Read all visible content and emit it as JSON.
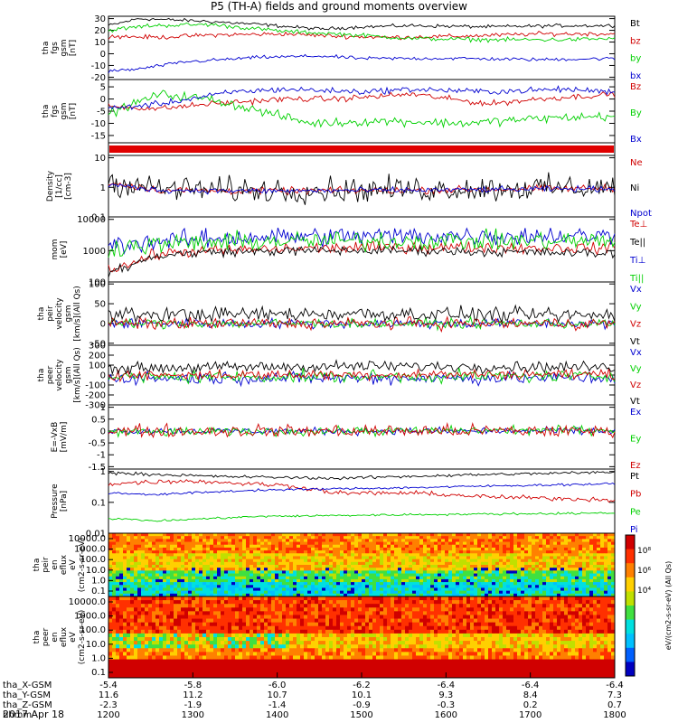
{
  "title": "P5 (TH-A) fields and ground moments overview",
  "footer_date": "2017 Apr 18",
  "spectro_cbar_labels": [
    "10⁸",
    "10⁶",
    "10⁴"
  ],
  "spectro_cbar_unit": "eV/(cm2-s-sr-eV) (All Qs)",
  "chart_data": [
    {
      "type": "line",
      "ylabel": [
        "tha",
        "fgs",
        "gsm",
        "[nT]"
      ],
      "yticks": [
        30,
        20,
        10,
        0,
        -10,
        -20
      ],
      "ylim": [
        -22,
        32
      ],
      "log": false,
      "series": [
        {
          "name": "Bt",
          "color": "#000000",
          "shape": [
            [
              0,
              24
            ],
            [
              0.06,
              30
            ],
            [
              0.18,
              28
            ],
            [
              0.3,
              25
            ],
            [
              0.42,
              21
            ],
            [
              0.5,
              23
            ],
            [
              0.6,
              24
            ],
            [
              0.75,
              23
            ],
            [
              0.9,
              24
            ],
            [
              1,
              24
            ]
          ],
          "noise": 1.2
        },
        {
          "name": "bz",
          "color": "#d00000",
          "shape": [
            [
              0,
              15
            ],
            [
              0.1,
              14
            ],
            [
              0.2,
              16
            ],
            [
              0.35,
              17
            ],
            [
              0.45,
              15
            ],
            [
              0.55,
              14
            ],
            [
              0.7,
              15
            ],
            [
              0.85,
              17
            ],
            [
              1,
              17
            ]
          ],
          "noise": 1.5
        },
        {
          "name": "by",
          "color": "#00d000",
          "shape": [
            [
              0,
              20
            ],
            [
              0.08,
              24
            ],
            [
              0.2,
              25
            ],
            [
              0.35,
              19
            ],
            [
              0.45,
              17
            ],
            [
              0.6,
              13
            ],
            [
              0.75,
              12
            ],
            [
              0.9,
              12
            ],
            [
              1,
              13
            ]
          ],
          "noise": 1.5
        },
        {
          "name": "bx",
          "color": "#0000d0",
          "shape": [
            [
              0,
              -15
            ],
            [
              0.06,
              -13
            ],
            [
              0.15,
              -7
            ],
            [
              0.3,
              -3
            ],
            [
              0.42,
              -2
            ],
            [
              0.5,
              -4
            ],
            [
              0.7,
              -4
            ],
            [
              0.85,
              -5
            ],
            [
              1,
              -4
            ]
          ],
          "noise": 1.2
        }
      ]
    },
    {
      "type": "line",
      "ylabel": [
        "tha",
        "fgs",
        "gsm",
        "[nT]"
      ],
      "yticks": [
        5,
        0,
        -5,
        -10,
        -15
      ],
      "ylim": [
        -18,
        8
      ],
      "log": false,
      "series": [
        {
          "name": "Bz",
          "color": "#d00000",
          "shape": [
            [
              0,
              -3
            ],
            [
              0.1,
              -4
            ],
            [
              0.2,
              -2
            ],
            [
              0.35,
              0
            ],
            [
              0.45,
              0
            ],
            [
              0.6,
              2
            ],
            [
              0.75,
              -2
            ],
            [
              0.85,
              0
            ],
            [
              1,
              2
            ]
          ],
          "noise": 1.0
        },
        {
          "name": "By",
          "color": "#00d000",
          "shape": [
            [
              0,
              -6
            ],
            [
              0.1,
              2
            ],
            [
              0.2,
              0
            ],
            [
              0.3,
              -5
            ],
            [
              0.4,
              -10
            ],
            [
              0.55,
              -9
            ],
            [
              0.7,
              -10
            ],
            [
              0.85,
              -8
            ],
            [
              1,
              -7
            ]
          ],
          "noise": 1.5
        },
        {
          "name": "Bx",
          "color": "#0000d0",
          "shape": [
            [
              0,
              -4
            ],
            [
              0.1,
              -2
            ],
            [
              0.25,
              3
            ],
            [
              0.35,
              4
            ],
            [
              0.5,
              3
            ],
            [
              0.6,
              4
            ],
            [
              0.75,
              3
            ],
            [
              0.9,
              4
            ],
            [
              1,
              3
            ]
          ],
          "noise": 1.0
        }
      ]
    },
    {
      "type": "line",
      "ylabel": [
        "Density",
        "[1/cc]",
        "[cm-3]"
      ],
      "yticks": [
        10.0,
        1.0,
        0.1
      ],
      "ylim": [
        0.1,
        12
      ],
      "log": true,
      "series": [
        {
          "name": "Ne",
          "color": "#d00000",
          "shape": [
            [
              0,
              1.4
            ],
            [
              0.1,
              0.8
            ],
            [
              0.3,
              0.75
            ],
            [
              0.6,
              0.8
            ],
            [
              1,
              0.95
            ]
          ],
          "noise": 0.1
        },
        {
          "name": "Ni",
          "color": "#000000",
          "shape": [
            [
              0,
              1.5
            ],
            [
              0.1,
              0.9
            ],
            [
              0.3,
              0.8
            ],
            [
              0.6,
              0.85
            ],
            [
              1,
              1.0
            ]
          ],
          "noise": 0.35
        },
        {
          "name": "Npot",
          "color": "#0000d0",
          "shape": [
            [
              0,
              1.2
            ],
            [
              0.1,
              0.8
            ],
            [
              0.3,
              0.75
            ],
            [
              0.6,
              0.8
            ],
            [
              1,
              0.9
            ]
          ],
          "noise": 0.08
        }
      ]
    },
    {
      "type": "line",
      "ylabel": [
        "mom",
        "[eV]"
      ],
      "yticks": [
        10000,
        1000,
        100
      ],
      "ylim": [
        100,
        12000
      ],
      "log": true,
      "series": [
        {
          "name": "Te⊥",
          "color": "#d00000",
          "shape": [
            [
              0,
              250
            ],
            [
              0.05,
              400
            ],
            [
              0.1,
              800
            ],
            [
              0.2,
              1000
            ],
            [
              0.4,
              1200
            ],
            [
              0.6,
              1300
            ],
            [
              1,
              1200
            ]
          ],
          "noise": 0.15
        },
        {
          "name": "Te||",
          "color": "#000000",
          "shape": [
            [
              0,
              200
            ],
            [
              0.05,
              350
            ],
            [
              0.1,
              700
            ],
            [
              0.2,
              900
            ],
            [
              0.4,
              1000
            ],
            [
              0.6,
              1000
            ],
            [
              0.8,
              900
            ],
            [
              1,
              800
            ]
          ],
          "noise": 0.12
        },
        {
          "name": "Ti⊥",
          "color": "#0000d0",
          "shape": [
            [
              0,
              1500
            ],
            [
              0.1,
              2000
            ],
            [
              0.3,
              2800
            ],
            [
              0.6,
              3000
            ],
            [
              1,
              3000
            ]
          ],
          "noise": 0.25
        },
        {
          "name": "Ti||",
          "color": "#00d000",
          "shape": [
            [
              0,
              1200
            ],
            [
              0.1,
              1600
            ],
            [
              0.3,
              2000
            ],
            [
              0.6,
              2100
            ],
            [
              1,
              2000
            ]
          ],
          "noise": 0.25
        }
      ]
    },
    {
      "type": "line",
      "ylabel": [
        "tha",
        "peir",
        "velocity",
        "gsm",
        "[km/s](All Qs)"
      ],
      "yticks": [
        100,
        50,
        0,
        -50
      ],
      "ylim": [
        -55,
        105
      ],
      "log": false,
      "series": [
        {
          "name": "Vx",
          "color": "#0000d0",
          "shape": [
            [
              0,
              0
            ],
            [
              1,
              0
            ]
          ],
          "noise": 10
        },
        {
          "name": "Vy",
          "color": "#00d000",
          "shape": [
            [
              0,
              0
            ],
            [
              1,
              0
            ]
          ],
          "noise": 10
        },
        {
          "name": "Vz",
          "color": "#d00000",
          "shape": [
            [
              0,
              0
            ],
            [
              1,
              0
            ]
          ],
          "noise": 12
        },
        {
          "name": "Vt",
          "color": "#000000",
          "shape": [
            [
              0,
              22
            ],
            [
              0.5,
              25
            ],
            [
              1,
              20
            ]
          ],
          "noise": 15
        }
      ]
    },
    {
      "type": "line",
      "ylabel": [
        "tha",
        "peer",
        "velocity",
        "gsm",
        "[km/s](All Qs)"
      ],
      "yticks": [
        300,
        200,
        100,
        0,
        -100,
        -200,
        -300
      ],
      "ylim": [
        -300,
        300
      ],
      "log": false,
      "series": [
        {
          "name": "Vx",
          "color": "#0000d0",
          "shape": [
            [
              0,
              -30
            ],
            [
              1,
              -30
            ]
          ],
          "noise": 50
        },
        {
          "name": "Vy",
          "color": "#00d000",
          "shape": [
            [
              0,
              -20
            ],
            [
              1,
              -10
            ]
          ],
          "noise": 50
        },
        {
          "name": "Vz",
          "color": "#d00000",
          "shape": [
            [
              0,
              0
            ],
            [
              1,
              10
            ]
          ],
          "noise": 40
        },
        {
          "name": "Vt",
          "color": "#000000",
          "shape": [
            [
              0,
              70
            ],
            [
              0.5,
              90
            ],
            [
              1,
              80
            ]
          ],
          "noise": 45
        }
      ]
    },
    {
      "type": "line",
      "ylabel": [
        "E=-VxB",
        "[mV/m]"
      ],
      "yticks": [
        1.0,
        0.5,
        0.0,
        -0.5,
        -1.0,
        -1.5
      ],
      "ylim": [
        -1.6,
        1.1
      ],
      "log": false,
      "series": [
        {
          "name": "Ex",
          "color": "#0000d0",
          "shape": [
            [
              0,
              0
            ],
            [
              1,
              0
            ]
          ],
          "noise": 0.12
        },
        {
          "name": "Ey",
          "color": "#00d000",
          "shape": [
            [
              0,
              -0.05
            ],
            [
              1,
              0.05
            ]
          ],
          "noise": 0.15
        },
        {
          "name": "Ez",
          "color": "#d00000",
          "shape": [
            [
              0,
              0
            ],
            [
              1,
              0
            ]
          ],
          "noise": 0.22
        }
      ]
    },
    {
      "type": "line",
      "ylabel": [
        "Pressure",
        "[nPa]"
      ],
      "yticks": [
        1.0,
        0.1,
        0.01
      ],
      "ylim": [
        0.01,
        1.2
      ],
      "log": true,
      "series": [
        {
          "name": "Pt",
          "color": "#000000",
          "shape": [
            [
              0,
              0.9
            ],
            [
              0.2,
              0.7
            ],
            [
              0.45,
              0.6
            ],
            [
              0.6,
              0.7
            ],
            [
              0.75,
              0.8
            ],
            [
              1,
              0.95
            ]
          ],
          "noise": 0.04
        },
        {
          "name": "Pb",
          "color": "#d00000",
          "shape": [
            [
              0,
              0.4
            ],
            [
              0.15,
              0.5
            ],
            [
              0.35,
              0.35
            ],
            [
              0.45,
              0.2
            ],
            [
              0.6,
              0.2
            ],
            [
              0.75,
              0.15
            ],
            [
              1,
              0.12
            ]
          ],
          "noise": 0.06
        },
        {
          "name": "Pe",
          "color": "#00d000",
          "shape": [
            [
              0,
              0.03
            ],
            [
              0.1,
              0.025
            ],
            [
              0.3,
              0.035
            ],
            [
              0.6,
              0.04
            ],
            [
              1,
              0.045
            ]
          ],
          "noise": 0.03
        },
        {
          "name": "Pi",
          "color": "#0000d0",
          "shape": [
            [
              0,
              0.2
            ],
            [
              0.1,
              0.18
            ],
            [
              0.3,
              0.25
            ],
            [
              0.6,
              0.3
            ],
            [
              1,
              0.4
            ]
          ],
          "noise": 0.03
        }
      ]
    },
    {
      "type": "heatmap",
      "ylabel": [
        "tha",
        "peir",
        "en",
        "eflux",
        "eV",
        "(cm2-s-sr-eV)"
      ],
      "yticks": [
        "10000.0",
        "1000.0",
        "100.0",
        "10.0",
        "1.0",
        "0.1"
      ],
      "ylim": [
        0.1,
        20000
      ]
    },
    {
      "type": "heatmap",
      "ylabel": [
        "tha",
        "peer",
        "en",
        "eflux",
        "eV",
        "(cm2-s-sr-eV)"
      ],
      "yticks": [
        "10000.0",
        "1000.0",
        "100.0",
        "10.0",
        "1.0",
        "0.1"
      ],
      "ylim": [
        0.1,
        20000
      ]
    }
  ],
  "xaxis": {
    "hhmm": [
      "1200",
      "1300",
      "1400",
      "1500",
      "1600",
      "1700",
      "1800"
    ],
    "rows": [
      {
        "label": "tha_X-GSM",
        "values": [
          "-5.4",
          "-5.8",
          "-6.0",
          "-6.2",
          "-6.4",
          "-6.4",
          "-6.4"
        ]
      },
      {
        "label": "tha_Y-GSM",
        "values": [
          "11.6",
          "11.2",
          "10.7",
          "10.1",
          "9.3",
          "8.4",
          "7.3"
        ]
      },
      {
        "label": "tha_Z-GSM",
        "values": [
          "-2.3",
          "-1.9",
          "-1.4",
          "-0.9",
          "-0.3",
          "0.2",
          "0.7"
        ]
      },
      {
        "label": "hhmm",
        "values": [
          "1200",
          "1300",
          "1400",
          "1500",
          "1600",
          "1700",
          "1800"
        ]
      }
    ]
  }
}
